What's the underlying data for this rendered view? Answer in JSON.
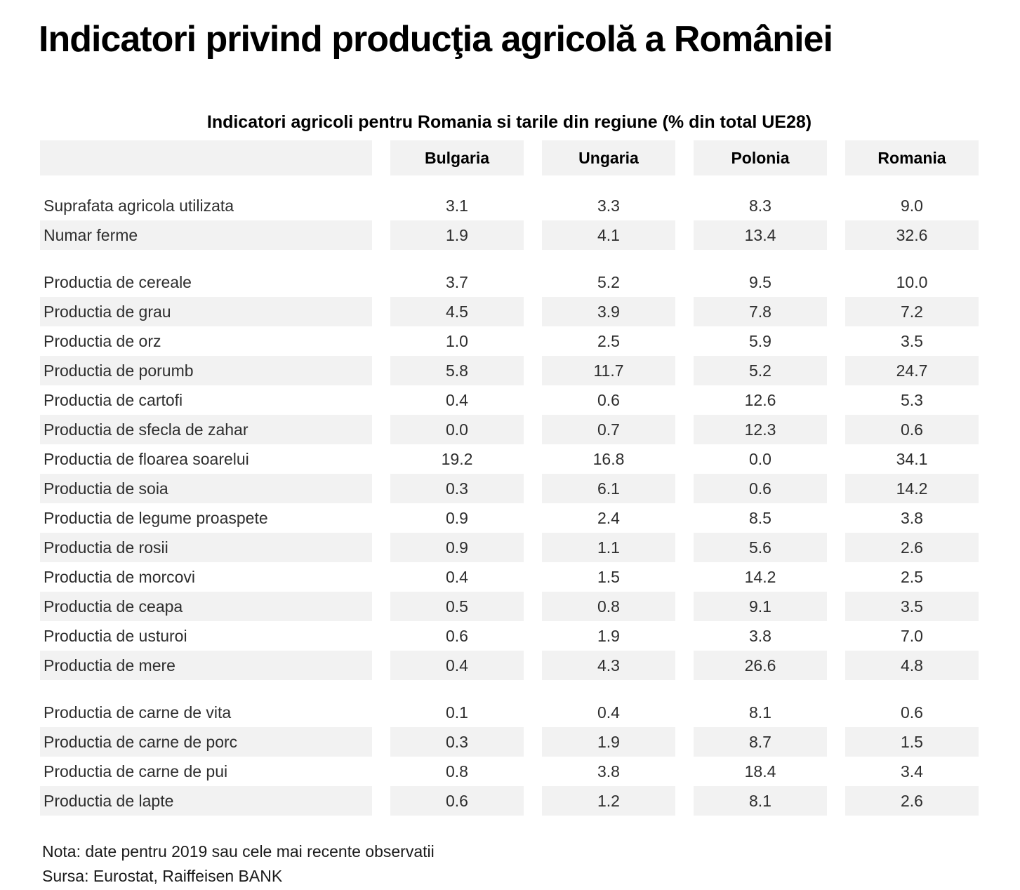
{
  "title": "Indicatori privind producţia agricolă a României",
  "table": {
    "subtitle": "Indicatori agricoli pentru Romania si tarile din regiune (% din total UE28)",
    "columns": [
      "Bulgaria",
      "Ungaria",
      "Polonia",
      "Romania"
    ],
    "groups": [
      {
        "rows": [
          {
            "label": "Suprafata agricola utilizata",
            "values": [
              "3.1",
              "3.3",
              "8.3",
              "9.0"
            ]
          },
          {
            "label": "Numar ferme",
            "values": [
              "1.9",
              "4.1",
              "13.4",
              "32.6"
            ]
          }
        ]
      },
      {
        "rows": [
          {
            "label": "Productia de cereale",
            "values": [
              "3.7",
              "5.2",
              "9.5",
              "10.0"
            ]
          },
          {
            "label": "Productia de grau",
            "values": [
              "4.5",
              "3.9",
              "7.8",
              "7.2"
            ]
          },
          {
            "label": "Productia de orz",
            "values": [
              "1.0",
              "2.5",
              "5.9",
              "3.5"
            ]
          },
          {
            "label": "Productia de porumb",
            "values": [
              "5.8",
              "11.7",
              "5.2",
              "24.7"
            ]
          },
          {
            "label": "Productia de cartofi",
            "values": [
              "0.4",
              "0.6",
              "12.6",
              "5.3"
            ]
          },
          {
            "label": "Productia de sfecla de zahar",
            "values": [
              "0.0",
              "0.7",
              "12.3",
              "0.6"
            ]
          },
          {
            "label": "Productia de floarea soarelui",
            "values": [
              "19.2",
              "16.8",
              "0.0",
              "34.1"
            ]
          },
          {
            "label": "Productia de soia",
            "values": [
              "0.3",
              "6.1",
              "0.6",
              "14.2"
            ]
          },
          {
            "label": "Productia de legume proaspete",
            "values": [
              "0.9",
              "2.4",
              "8.5",
              "3.8"
            ]
          },
          {
            "label": "Productia de rosii",
            "values": [
              "0.9",
              "1.1",
              "5.6",
              "2.6"
            ]
          },
          {
            "label": "Productia de morcovi",
            "values": [
              "0.4",
              "1.5",
              "14.2",
              "2.5"
            ]
          },
          {
            "label": "Productia de ceapa",
            "values": [
              "0.5",
              "0.8",
              "9.1",
              "3.5"
            ]
          },
          {
            "label": "Productia de usturoi",
            "values": [
              "0.6",
              "1.9",
              "3.8",
              "7.0"
            ]
          },
          {
            "label": "Productia de mere",
            "values": [
              "0.4",
              "4.3",
              "26.6",
              "4.8"
            ]
          }
        ]
      },
      {
        "rows": [
          {
            "label": "Productia de carne de vita",
            "values": [
              "0.1",
              "0.4",
              "8.1",
              "0.6"
            ]
          },
          {
            "label": "Productia de carne de porc",
            "values": [
              "0.3",
              "1.9",
              "8.7",
              "1.5"
            ]
          },
          {
            "label": "Productia de carne de pui",
            "values": [
              "0.8",
              "3.8",
              "18.4",
              "3.4"
            ]
          },
          {
            "label": "Productia de lapte",
            "values": [
              "0.6",
              "1.2",
              "8.1",
              "2.6"
            ]
          }
        ]
      }
    ]
  },
  "footer": {
    "note": "Nota: date pentru 2019 sau cele mai recente observatii",
    "source": "Sursa: Eurostat, Raiffeisen BANK"
  },
  "colors": {
    "row_shading": "#f2f2f2",
    "text": "#2e2e2e",
    "heading_text": "#000000",
    "background": "#ffffff"
  }
}
